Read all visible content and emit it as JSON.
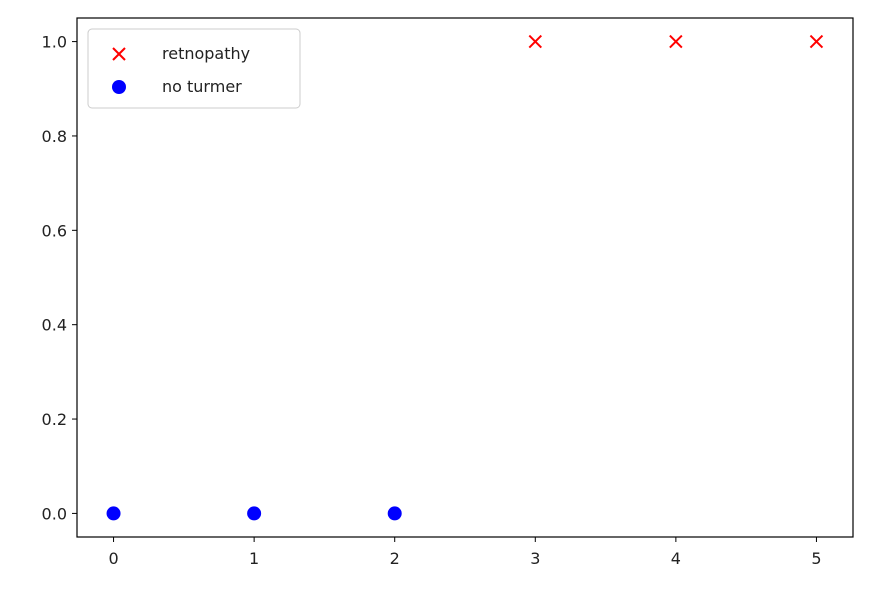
{
  "chart_data": {
    "type": "scatter",
    "title": "",
    "xlabel": "",
    "ylabel": "",
    "xlim": [
      -0.26,
      5.26
    ],
    "ylim": [
      -0.05,
      1.05
    ],
    "xticks": [
      0,
      1,
      2,
      3,
      4,
      5
    ],
    "xtick_labels": [
      "0",
      "1",
      "2",
      "3",
      "4",
      "5"
    ],
    "yticks": [
      0.0,
      0.2,
      0.4,
      0.6,
      0.8,
      1.0
    ],
    "ytick_labels": [
      "0.0",
      "0.2",
      "0.4",
      "0.6",
      "0.8",
      "1.0"
    ],
    "grid": false,
    "legend_position": "top-left",
    "series": [
      {
        "name": "retnopathy",
        "marker": "x",
        "color": "#ff0000",
        "x": [
          3,
          4,
          5
        ],
        "y": [
          1,
          1,
          1
        ]
      },
      {
        "name": "no turmer",
        "marker": "circle",
        "color": "#0000ff",
        "x": [
          0,
          1,
          2
        ],
        "y": [
          0,
          0,
          0
        ]
      }
    ]
  }
}
